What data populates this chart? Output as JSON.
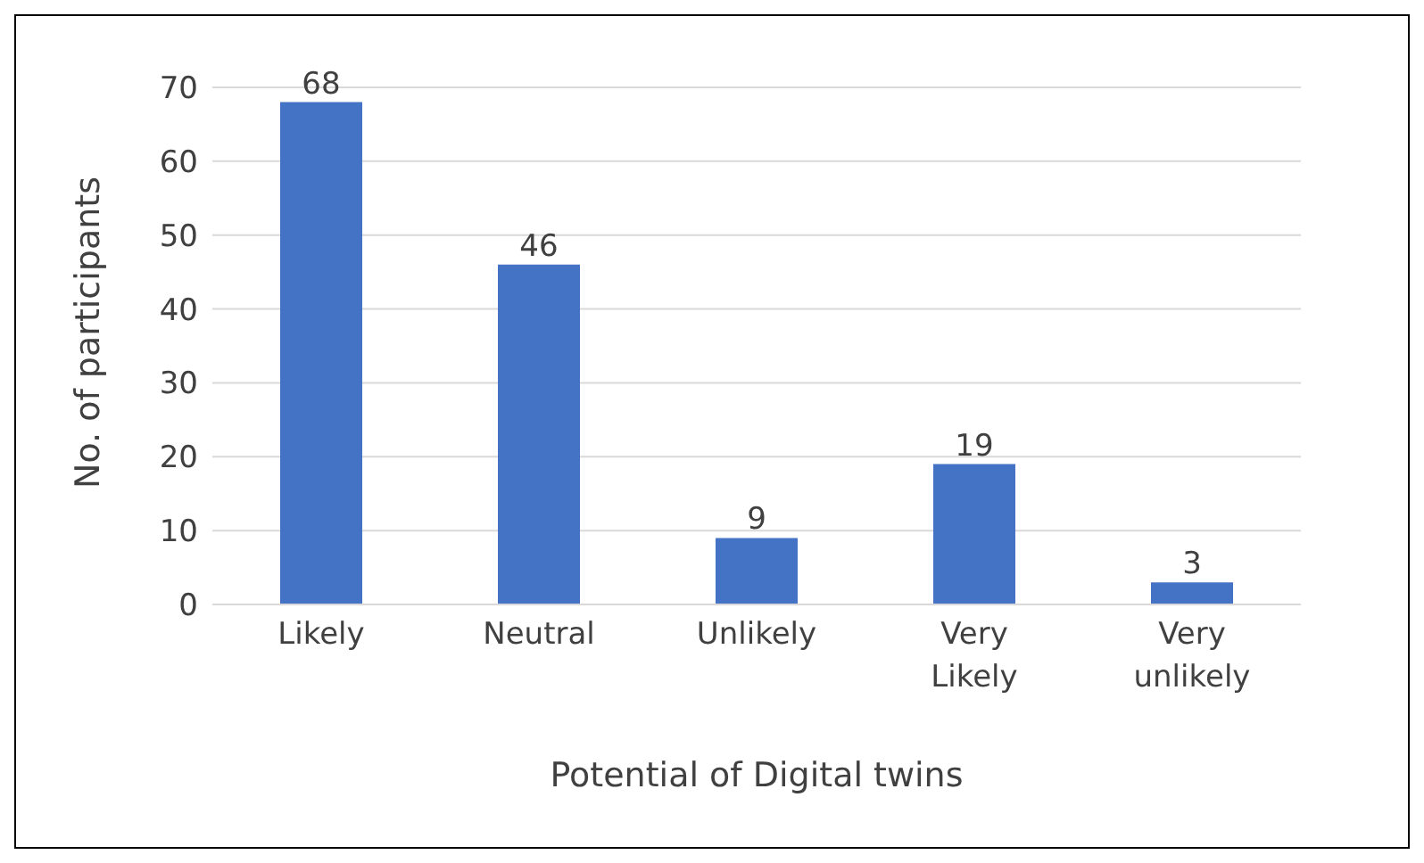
{
  "chart_data": {
    "type": "bar",
    "xlabel": "Potential of Digital twins",
    "ylabel": "No. of participants",
    "categories": [
      "Likely",
      "Neutral",
      "Unlikely",
      "Very Likely",
      "Very unlikely"
    ],
    "values": [
      68,
      46,
      9,
      19,
      3
    ],
    "color": "#4472c4",
    "ylim": [
      0,
      70
    ],
    "yticks": [
      0,
      10,
      20,
      30,
      40,
      50,
      60,
      70
    ],
    "grid": "y",
    "data_labels": true
  }
}
